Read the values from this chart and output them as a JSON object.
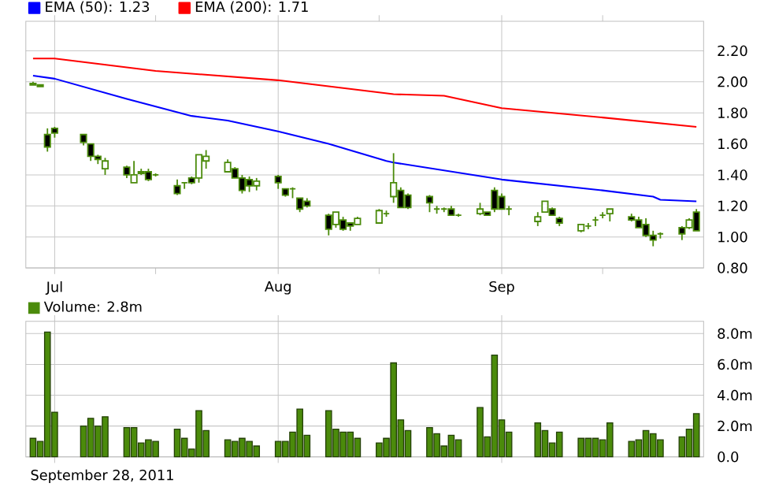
{
  "chart_data": [
    {
      "type": "candlestick",
      "color": "#4b8b0b",
      "x": [
        "2011-06-28",
        "2011-06-29",
        "2011-06-30",
        "2011-07-01",
        "2011-07-05",
        "2011-07-06",
        "2011-07-07",
        "2011-07-08",
        "2011-07-11",
        "2011-07-12",
        "2011-07-13",
        "2011-07-14",
        "2011-07-15",
        "2011-07-18",
        "2011-07-19",
        "2011-07-20",
        "2011-07-21",
        "2011-07-22",
        "2011-07-25",
        "2011-07-26",
        "2011-07-27",
        "2011-07-28",
        "2011-07-29",
        "2011-08-01",
        "2011-08-02",
        "2011-08-03",
        "2011-08-04",
        "2011-08-05",
        "2011-08-08",
        "2011-08-09",
        "2011-08-10",
        "2011-08-11",
        "2011-08-12",
        "2011-08-15",
        "2011-08-16",
        "2011-08-17",
        "2011-08-18",
        "2011-08-19",
        "2011-08-22",
        "2011-08-23",
        "2011-08-24",
        "2011-08-25",
        "2011-08-26",
        "2011-08-29",
        "2011-08-30",
        "2011-08-31",
        "2011-09-01",
        "2011-09-02",
        "2011-09-06",
        "2011-09-07",
        "2011-09-08",
        "2011-09-09",
        "2011-09-12",
        "2011-09-13",
        "2011-09-14",
        "2011-09-15",
        "2011-09-16",
        "2011-09-19",
        "2011-09-20",
        "2011-09-21",
        "2011-09-22",
        "2011-09-23",
        "2011-09-26",
        "2011-09-27",
        "2011-09-28"
      ],
      "ohlc": [
        [
          1.98,
          2.0,
          1.98,
          1.99
        ],
        [
          1.98,
          1.98,
          1.97,
          1.97
        ],
        [
          1.66,
          1.7,
          1.55,
          1.58
        ],
        [
          1.7,
          1.71,
          1.64,
          1.67
        ],
        [
          1.66,
          1.66,
          1.59,
          1.61
        ],
        [
          1.6,
          1.6,
          1.49,
          1.52
        ],
        [
          1.52,
          1.53,
          1.47,
          1.5
        ],
        [
          1.44,
          1.51,
          1.4,
          1.49
        ],
        [
          1.45,
          1.46,
          1.38,
          1.4
        ],
        [
          1.35,
          1.49,
          1.35,
          1.4
        ],
        [
          1.41,
          1.44,
          1.4,
          1.42
        ],
        [
          1.42,
          1.44,
          1.36,
          1.37
        ],
        [
          1.4,
          1.41,
          1.39,
          1.4
        ],
        [
          1.33,
          1.37,
          1.27,
          1.28
        ],
        [
          1.35,
          1.35,
          1.31,
          1.35
        ],
        [
          1.38,
          1.39,
          1.34,
          1.35
        ],
        [
          1.38,
          1.53,
          1.35,
          1.53
        ],
        [
          1.49,
          1.56,
          1.44,
          1.52
        ],
        [
          1.42,
          1.5,
          1.42,
          1.48
        ],
        [
          1.44,
          1.45,
          1.38,
          1.38
        ],
        [
          1.38,
          1.4,
          1.28,
          1.3
        ],
        [
          1.37,
          1.39,
          1.29,
          1.33
        ],
        [
          1.33,
          1.38,
          1.3,
          1.36
        ],
        [
          1.39,
          1.4,
          1.31,
          1.35
        ],
        [
          1.31,
          1.31,
          1.26,
          1.27
        ],
        [
          1.31,
          1.32,
          1.25,
          1.31
        ],
        [
          1.25,
          1.25,
          1.16,
          1.18
        ],
        [
          1.23,
          1.25,
          1.19,
          1.2
        ],
        [
          1.14,
          1.15,
          1.01,
          1.05
        ],
        [
          1.08,
          1.16,
          1.06,
          1.16
        ],
        [
          1.11,
          1.13,
          1.04,
          1.05
        ],
        [
          1.09,
          1.09,
          1.04,
          1.07
        ],
        [
          1.08,
          1.13,
          1.08,
          1.12
        ],
        [
          1.09,
          1.18,
          1.09,
          1.17
        ],
        [
          1.15,
          1.17,
          1.13,
          1.15
        ],
        [
          1.26,
          1.54,
          1.22,
          1.35
        ],
        [
          1.3,
          1.32,
          1.19,
          1.19
        ],
        [
          1.27,
          1.28,
          1.18,
          1.19
        ],
        [
          1.26,
          1.27,
          1.16,
          1.22
        ],
        [
          1.18,
          1.2,
          1.15,
          1.18
        ],
        [
          1.18,
          1.19,
          1.16,
          1.18
        ],
        [
          1.18,
          1.2,
          1.14,
          1.14
        ],
        [
          1.14,
          1.15,
          1.13,
          1.14
        ],
        [
          1.15,
          1.22,
          1.14,
          1.18
        ],
        [
          1.16,
          1.16,
          1.14,
          1.14
        ],
        [
          1.3,
          1.32,
          1.16,
          1.18
        ],
        [
          1.26,
          1.28,
          1.18,
          1.18
        ],
        [
          1.18,
          1.2,
          1.14,
          1.18
        ],
        [
          1.1,
          1.16,
          1.07,
          1.13
        ],
        [
          1.16,
          1.23,
          1.16,
          1.23
        ],
        [
          1.18,
          1.19,
          1.14,
          1.14
        ],
        [
          1.12,
          1.13,
          1.07,
          1.09
        ],
        [
          1.04,
          1.08,
          1.03,
          1.08
        ],
        [
          1.07,
          1.09,
          1.05,
          1.07
        ],
        [
          1.11,
          1.13,
          1.07,
          1.11
        ],
        [
          1.14,
          1.16,
          1.12,
          1.14
        ],
        [
          1.15,
          1.18,
          1.1,
          1.18
        ],
        [
          1.13,
          1.15,
          1.1,
          1.11
        ],
        [
          1.11,
          1.13,
          1.06,
          1.06
        ],
        [
          1.08,
          1.12,
          1.0,
          1.01
        ],
        [
          1.01,
          1.04,
          0.94,
          0.98
        ],
        [
          1.02,
          1.03,
          0.99,
          1.02
        ],
        [
          1.06,
          1.07,
          0.98,
          1.02
        ],
        [
          1.06,
          1.12,
          1.05,
          1.11
        ],
        [
          1.16,
          1.18,
          1.04,
          1.04
        ]
      ],
      "series": [
        {
          "type": "line",
          "name": "EMA (50): 1.23",
          "color": "#0000ff",
          "x": [
            "2011-06-28",
            "2011-07-01",
            "2011-07-11",
            "2011-07-20",
            "2011-07-25",
            "2011-08-01",
            "2011-08-08",
            "2011-08-16",
            "2011-08-17",
            "2011-09-01",
            "2011-09-15",
            "2011-09-22",
            "2011-09-23",
            "2011-09-28"
          ],
          "values": [
            2.04,
            2.02,
            1.89,
            1.78,
            1.75,
            1.68,
            1.6,
            1.49,
            1.48,
            1.37,
            1.3,
            1.26,
            1.24,
            1.23
          ]
        },
        {
          "type": "line",
          "name": "EMA (200): 1.71",
          "color": "#ff0000",
          "x": [
            "2011-06-28",
            "2011-07-01",
            "2011-07-15",
            "2011-08-01",
            "2011-08-17",
            "2011-08-24",
            "2011-09-01",
            "2011-09-15",
            "2011-09-28"
          ],
          "values": [
            2.15,
            2.15,
            2.07,
            2.01,
            1.92,
            1.91,
            1.83,
            1.77,
            1.71
          ]
        }
      ],
      "xlim": [
        "2011-06-27",
        "2011-09-29"
      ],
      "xticks": [
        {
          "value": "2011-07-01",
          "label": "Jul"
        },
        {
          "value": "2011-07-15",
          "label": null
        },
        {
          "value": "2011-08-01",
          "label": "Aug"
        },
        {
          "value": "2011-08-15",
          "label": null
        },
        {
          "value": "2011-09-01",
          "label": "Sep"
        },
        {
          "value": "2011-09-15",
          "label": null
        }
      ],
      "ylim": [
        0.8,
        2.39
      ],
      "yticks": [
        {
          "value": 0.8,
          "label": "0.80"
        },
        {
          "value": 1.0,
          "label": "1.00"
        },
        {
          "value": 1.2,
          "label": "1.20"
        },
        {
          "value": 1.4,
          "label": "1.40"
        },
        {
          "value": 1.6,
          "label": "1.60"
        },
        {
          "value": 1.8,
          "label": "1.80"
        },
        {
          "value": 2.0,
          "label": "2.00"
        },
        {
          "value": 2.2,
          "label": "2.20"
        }
      ],
      "grid": true,
      "legend": "top left"
    },
    {
      "type": "bar",
      "x": [
        "2011-06-28",
        "2011-06-29",
        "2011-06-30",
        "2011-07-01",
        "2011-07-05",
        "2011-07-06",
        "2011-07-07",
        "2011-07-08",
        "2011-07-11",
        "2011-07-12",
        "2011-07-13",
        "2011-07-14",
        "2011-07-15",
        "2011-07-18",
        "2011-07-19",
        "2011-07-20",
        "2011-07-21",
        "2011-07-22",
        "2011-07-25",
        "2011-07-26",
        "2011-07-27",
        "2011-07-28",
        "2011-07-29",
        "2011-08-01",
        "2011-08-02",
        "2011-08-03",
        "2011-08-04",
        "2011-08-05",
        "2011-08-08",
        "2011-08-09",
        "2011-08-10",
        "2011-08-11",
        "2011-08-12",
        "2011-08-15",
        "2011-08-16",
        "2011-08-17",
        "2011-08-18",
        "2011-08-19",
        "2011-08-22",
        "2011-08-23",
        "2011-08-24",
        "2011-08-25",
        "2011-08-26",
        "2011-08-29",
        "2011-08-30",
        "2011-08-31",
        "2011-09-01",
        "2011-09-02",
        "2011-09-06",
        "2011-09-07",
        "2011-09-08",
        "2011-09-09",
        "2011-09-12",
        "2011-09-13",
        "2011-09-14",
        "2011-09-15",
        "2011-09-16",
        "2011-09-19",
        "2011-09-20",
        "2011-09-21",
        "2011-09-22",
        "2011-09-23",
        "2011-09-26",
        "2011-09-27",
        "2011-09-28"
      ],
      "series": [
        {
          "name": "Volume: 2.8m",
          "color": "#4b8b0b",
          "values": [
            1.2,
            1.0,
            8.1,
            2.9,
            2.0,
            2.5,
            2.0,
            2.6,
            1.9,
            1.9,
            0.9,
            1.1,
            1.0,
            1.8,
            1.2,
            0.5,
            3.0,
            1.7,
            1.1,
            1.0,
            1.2,
            1.0,
            0.7,
            1.0,
            1.0,
            1.6,
            3.1,
            1.4,
            3.0,
            1.8,
            1.6,
            1.6,
            1.2,
            0.9,
            1.2,
            6.1,
            2.4,
            1.7,
            1.9,
            1.5,
            0.7,
            1.4,
            1.1,
            3.2,
            1.3,
            6.6,
            2.4,
            1.6,
            2.2,
            1.7,
            0.9,
            1.6,
            1.2,
            1.2,
            1.2,
            1.1,
            2.2,
            1.0,
            1.1,
            1.7,
            1.5,
            1.1,
            1.3,
            1.8,
            2.8
          ]
        }
      ],
      "xlim": [
        "2011-06-27",
        "2011-09-29"
      ],
      "xticks": [
        {
          "value": "2011-07-01"
        },
        {
          "value": "2011-08-01"
        },
        {
          "value": "2011-09-01"
        }
      ],
      "tick_labels": "y",
      "ylim": [
        0,
        8.8
      ],
      "yticks": [
        {
          "value": 0,
          "label": "0.0"
        },
        {
          "value": 2,
          "label": "2.0m"
        },
        {
          "value": 4,
          "label": "4.0m"
        },
        {
          "value": 6,
          "label": "6.0m"
        },
        {
          "value": 8,
          "label": "8.0m"
        }
      ],
      "grid": true,
      "legend": "top left",
      "annotations": [
        "September 28, 2011"
      ]
    }
  ]
}
